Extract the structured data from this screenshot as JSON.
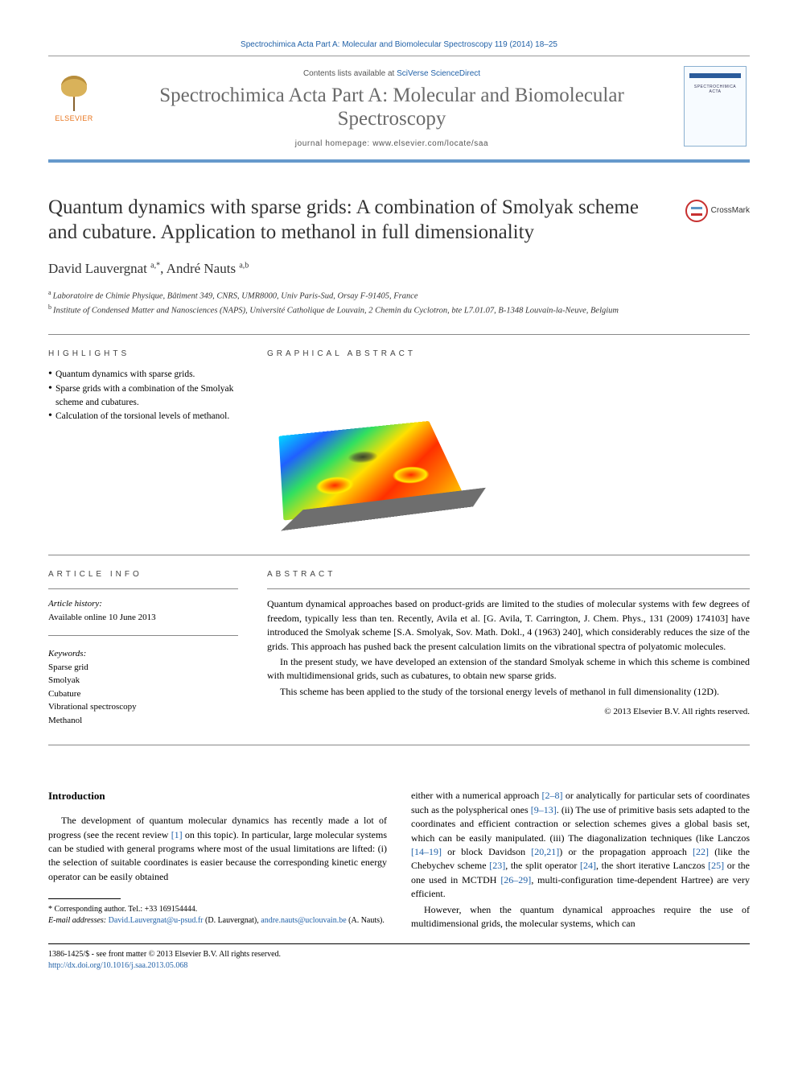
{
  "header": {
    "citation_prefix": "Spectrochimica Acta Part A: Molecular and Biomolecular Spectroscopy 119 (2014) 18–25",
    "contents_line_prefix": "Contents lists available at ",
    "contents_link": "SciVerse ScienceDirect",
    "journal_name": "Spectrochimica Acta Part A: Molecular and Biomolecular Spectroscopy",
    "homepage_prefix": "journal homepage: ",
    "homepage_url": "www.elsevier.com/locate/saa",
    "elsevier_label": "ELSEVIER",
    "crossmark": "CrossMark"
  },
  "article": {
    "title": "Quantum dynamics with sparse grids: A combination of Smolyak scheme and cubature. Application to methanol in full dimensionality",
    "authors_html": "David Lauvergnat <sup>a,*</sup>, André Nauts <sup>a,b</sup>",
    "affiliations": [
      {
        "sup": "a",
        "text": "Laboratoire de Chimie Physique, Bâtiment 349, CNRS, UMR8000, Univ Paris-Sud, Orsay F-91405, France"
      },
      {
        "sup": "b",
        "text": "Institute of Condensed Matter and Nanosciences (NAPS), Université Catholique de Louvain, 2 Chemin du Cyclotron, bte L7.01.07, B-1348 Louvain-la-Neuve, Belgium"
      }
    ]
  },
  "section_headings": {
    "highlights": "HIGHLIGHTS",
    "graphical": "GRAPHICAL ABSTRACT",
    "article_info": "ARTICLE INFO",
    "abstract": "ABSTRACT",
    "introduction": "Introduction"
  },
  "highlights": [
    "Quantum dynamics with sparse grids.",
    "Sparse grids with a combination of the Smolyak scheme and cubatures.",
    "Calculation of the torsional levels of methanol."
  ],
  "article_info": {
    "history_heading": "Article history:",
    "history_line": "Available online 10 June 2013",
    "keywords_heading": "Keywords:",
    "keywords": [
      "Sparse grid",
      "Smolyak",
      "Cubature",
      "Vibrational spectroscopy",
      "Methanol"
    ]
  },
  "abstract": {
    "paragraphs": [
      "Quantum dynamical approaches based on product-grids are limited to the studies of molecular systems with few degrees of freedom, typically less than ten. Recently, Avila et al. [G. Avila, T. Carrington, J. Chem. Phys., 131 (2009) 174103] have introduced the Smolyak scheme [S.A. Smolyak, Sov. Math. Dokl., 4 (1963) 240], which considerably reduces the size of the grids. This approach has pushed back the present calculation limits on the vibrational spectra of polyatomic molecules.",
      "In the present study, we have developed an extension of the standard Smolyak scheme in which this scheme is combined with multidimensional grids, such as cubatures, to obtain new sparse grids.",
      "This scheme has been applied to the study of the torsional energy levels of methanol in full dimensionality (12D)."
    ],
    "copyright": "© 2013 Elsevier B.V. All rights reserved."
  },
  "body": {
    "col1_p1": "The development of quantum molecular dynamics has recently made a lot of progress (see the recent review [1] on this topic). In particular, large molecular systems can be studied with general programs where most of the usual limitations are lifted: (i) the selection of suitable coordinates is easier because the corresponding kinetic energy operator can be easily obtained",
    "col2_p1": "either with a numerical approach [2–8] or analytically for particular sets of coordinates such as the polyspherical ones [9–13]. (ii) The use of primitive basis sets adapted to the coordinates and efficient contraction or selection schemes gives a global basis set, which can be easily manipulated. (iii) The diagonalization techniques (like Lanczos [14–19] or block Davidson [20,21]) or the propagation approach [22] (like the Chebychev scheme [23], the split operator [24], the short iterative Lanczos [25] or the one used in MCTDH [26–29], multi-configuration time-dependent Hartree) are very efficient.",
    "col2_p2": "However, when the quantum dynamical approaches require the use of multidimensional grids, the molecular systems, which can"
  },
  "footnotes": {
    "corr": "* Corresponding author. Tel.: +33 169154444.",
    "email_label": "E-mail addresses: ",
    "emails": [
      {
        "addr": "David.Lauvergnat@u-psud.fr",
        "who": " (D. Lauvergnat), "
      },
      {
        "addr": "andre.nauts@uclouvain.be",
        "who": " (A. Nauts)."
      }
    ]
  },
  "footer": {
    "line1": "1386-1425/$ - see front matter © 2013 Elsevier B.V. All rights reserved.",
    "doi": "http://dx.doi.org/10.1016/j.saa.2013.05.068"
  },
  "colors": {
    "link": "#2262a8",
    "accent_bar": "#6699cc",
    "elsevier_orange": "#e8741c"
  }
}
